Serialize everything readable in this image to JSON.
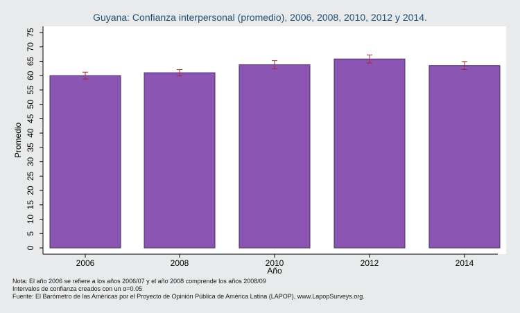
{
  "chart_data": {
    "type": "bar",
    "title": "Guyana: Confianza interpersonal (promedio), 2006, 2008, 2010, 2012 y 2014.",
    "xlabel": "Año",
    "ylabel": "Promedio",
    "categories": [
      "2006",
      "2008",
      "2010",
      "2012",
      "2014"
    ],
    "values": [
      60.0,
      61.0,
      63.8,
      65.8,
      63.5
    ],
    "error_low": [
      58.8,
      59.9,
      62.4,
      64.4,
      62.1
    ],
    "error_high": [
      61.2,
      62.1,
      65.2,
      67.2,
      64.9
    ],
    "ylim": [
      0,
      75
    ],
    "yticks": [
      0,
      5,
      10,
      15,
      20,
      25,
      30,
      35,
      40,
      45,
      50,
      55,
      60,
      65,
      70,
      75
    ],
    "grid": false,
    "colors": {
      "bar_fill": "#8a55b3",
      "bar_edge": "#4a2e63",
      "error_bar": "#a12a3a",
      "background": "#e8eaeb",
      "plot_background": "#ffffff",
      "title": "#1f4e79"
    }
  },
  "footnotes": [
    "Nota: El año 2006 se refiere a los años 2006/07 y el año 2008 comprende los años 2008/09",
    "Intervalos de confianza creados con un α=0.05",
    "Fuente: El Barómetro de las Américas por el Proyecto de Opinión Pública de América Latina (LAPOP), www.LapopSurveys.org."
  ]
}
